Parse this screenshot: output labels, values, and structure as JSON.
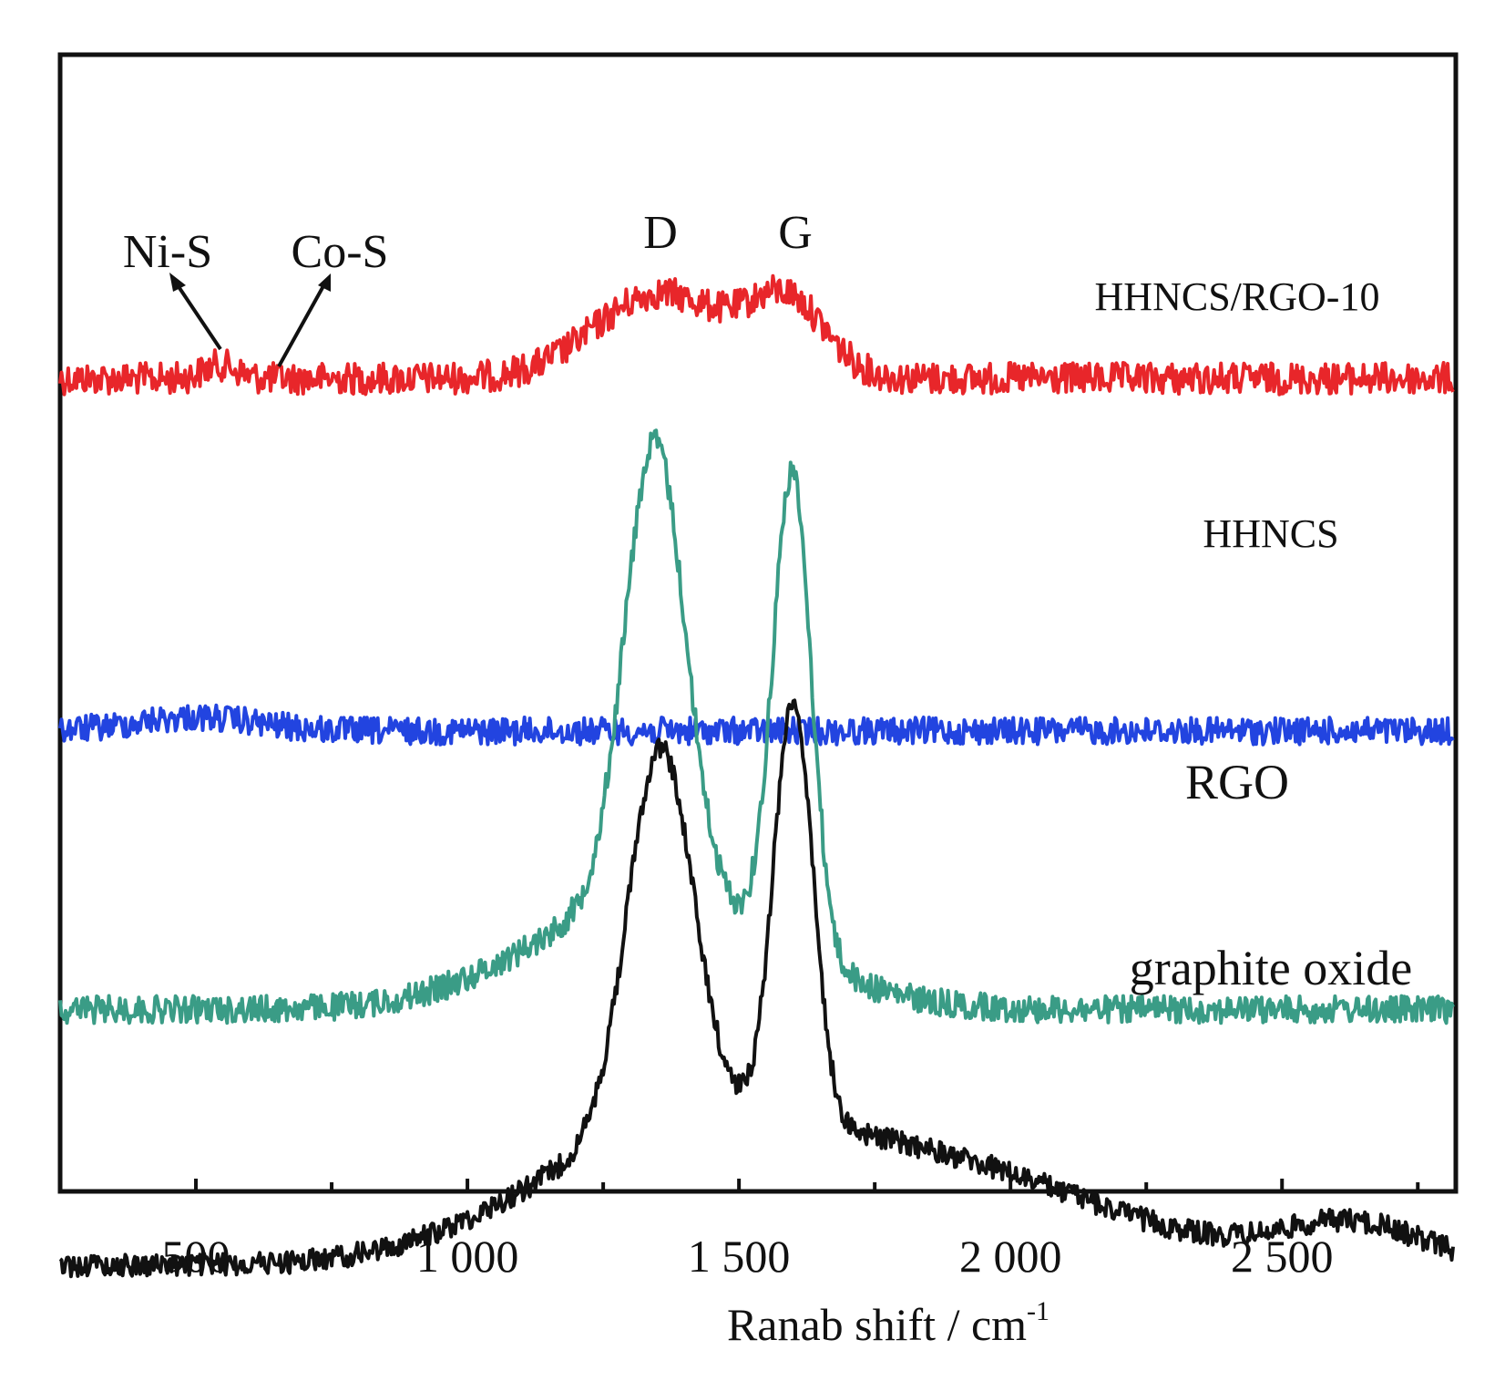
{
  "chart_data": {
    "type": "line",
    "xlabel": "Ranab shift / cm",
    "xlabel_superscript": "-1",
    "xlim": [
      250,
      2820
    ],
    "x_ticks": [
      500,
      1000,
      1500,
      2000,
      2500
    ],
    "x_tick_labels": [
      "500",
      "1 000",
      "1 500",
      "2 000",
      "2 500"
    ],
    "y_tick_labels": false,
    "grid": false,
    "layout": "vertically offset stacked traces, no y-axis scale",
    "series": [
      {
        "name": "HHNCS/RGO-10",
        "color": "#e8262a",
        "baseline": 0.285,
        "noise": 0.014,
        "peaks": [
          {
            "center": 1355,
            "height": 0.075,
            "width": 120
          },
          {
            "center": 1590,
            "height": 0.065,
            "width": 70
          },
          {
            "center": 545,
            "height": 0.012,
            "width": 30
          }
        ]
      },
      {
        "name": "HHNCS",
        "color": "#2244e0",
        "baseline": 0.595,
        "noise": 0.012,
        "peaks": [
          {
            "center": 500,
            "height": 0.012,
            "width": 110
          }
        ]
      },
      {
        "name": "RGO",
        "color": "#3a9c86",
        "baseline": 0.84,
        "noise": 0.012,
        "peaks": [
          {
            "center": 1345,
            "height": 0.4,
            "width": 55
          },
          {
            "center": 1598,
            "height": 0.42,
            "width": 35
          },
          {
            "center": 1350,
            "height": 0.1,
            "width": 220
          }
        ]
      },
      {
        "name": "graphite oxide",
        "color": "#111111",
        "baseline": 1.065,
        "noise": 0.01,
        "peaks": [
          {
            "center": 1355,
            "height": 0.33,
            "width": 60
          },
          {
            "center": 1600,
            "height": 0.37,
            "width": 36
          },
          {
            "center": 1360,
            "height": 0.1,
            "width": 260
          },
          {
            "center": 1850,
            "height": 0.085,
            "width": 320
          },
          {
            "center": 2630,
            "height": 0.035,
            "width": 130
          }
        ]
      }
    ],
    "series_labels": [
      "HHNCS/RGO-10",
      "HHNCS",
      "RGO",
      "graphite oxide"
    ],
    "annotations": [
      "D",
      "G",
      "Ni-S",
      "Co-S"
    ]
  }
}
